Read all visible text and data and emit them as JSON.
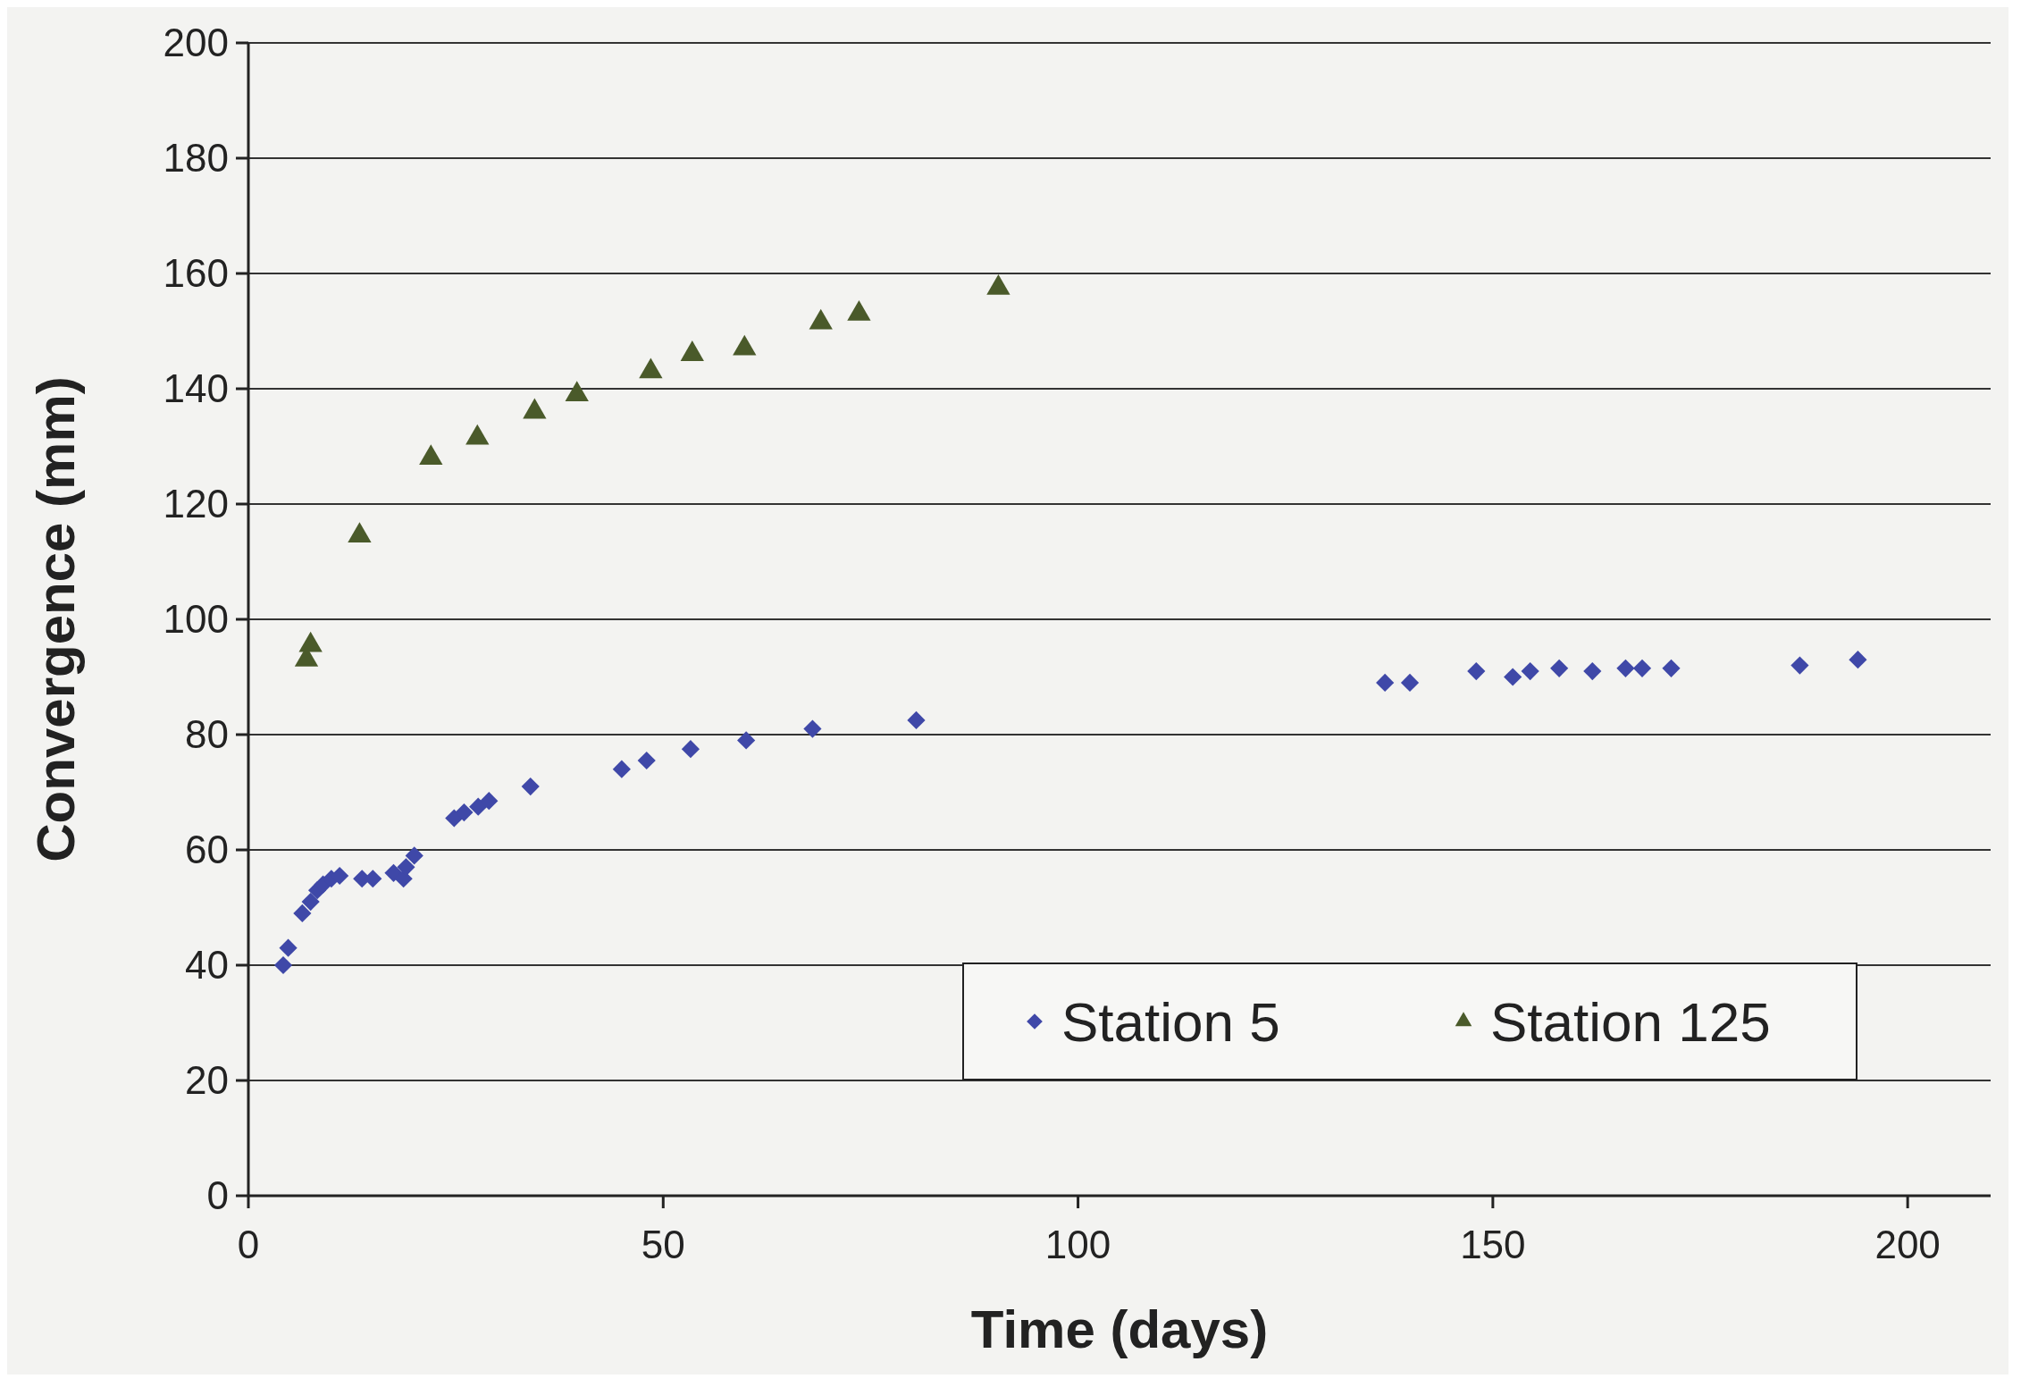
{
  "chart_data": {
    "type": "scatter",
    "xlabel": "Time (days)",
    "ylabel": "Convergence (mm)",
    "xlim": [
      0,
      210
    ],
    "xticks": [
      0,
      50,
      100,
      150,
      200
    ],
    "ylim": [
      0,
      200
    ],
    "yticks": [
      0,
      20,
      40,
      60,
      80,
      100,
      120,
      140,
      160,
      180,
      200
    ],
    "grid": "y",
    "legend": "bottom right",
    "series": [
      {
        "name": "Station 5",
        "color": "#3f48a8",
        "marker": "diamond",
        "x": [
          4.2,
          4.8,
          6.5,
          7.5,
          8.3,
          9,
          10,
          11,
          13.7,
          15,
          17.5,
          18.7,
          19,
          20,
          24.8,
          26,
          27.7,
          29,
          34,
          45,
          48,
          53.3,
          60,
          68,
          80.5,
          137,
          140,
          148,
          152.4,
          154.5,
          158,
          162,
          166,
          168,
          171.5,
          187,
          194
        ],
        "values": [
          40,
          43,
          49,
          51,
          53,
          54,
          55,
          55.5,
          55,
          55,
          56,
          55,
          57,
          59,
          65.5,
          66.5,
          67.5,
          68.5,
          71,
          74,
          75.5,
          77.5,
          79,
          81,
          82.5,
          89,
          89,
          91,
          90,
          91,
          91.5,
          91,
          91.5,
          91.5,
          91.5,
          92,
          93
        ]
      },
      {
        "name": "Station 125",
        "color": "#4a5a2a",
        "marker": "triangle",
        "x": [
          7,
          7.5,
          13.4,
          22,
          27.6,
          34.5,
          39.6,
          48.5,
          53.5,
          59.8,
          69,
          73.6,
          90.4
        ],
        "values": [
          93,
          95.5,
          114.5,
          128,
          131.5,
          136,
          139,
          143,
          146,
          147,
          151.5,
          153,
          157.5
        ]
      }
    ]
  }
}
